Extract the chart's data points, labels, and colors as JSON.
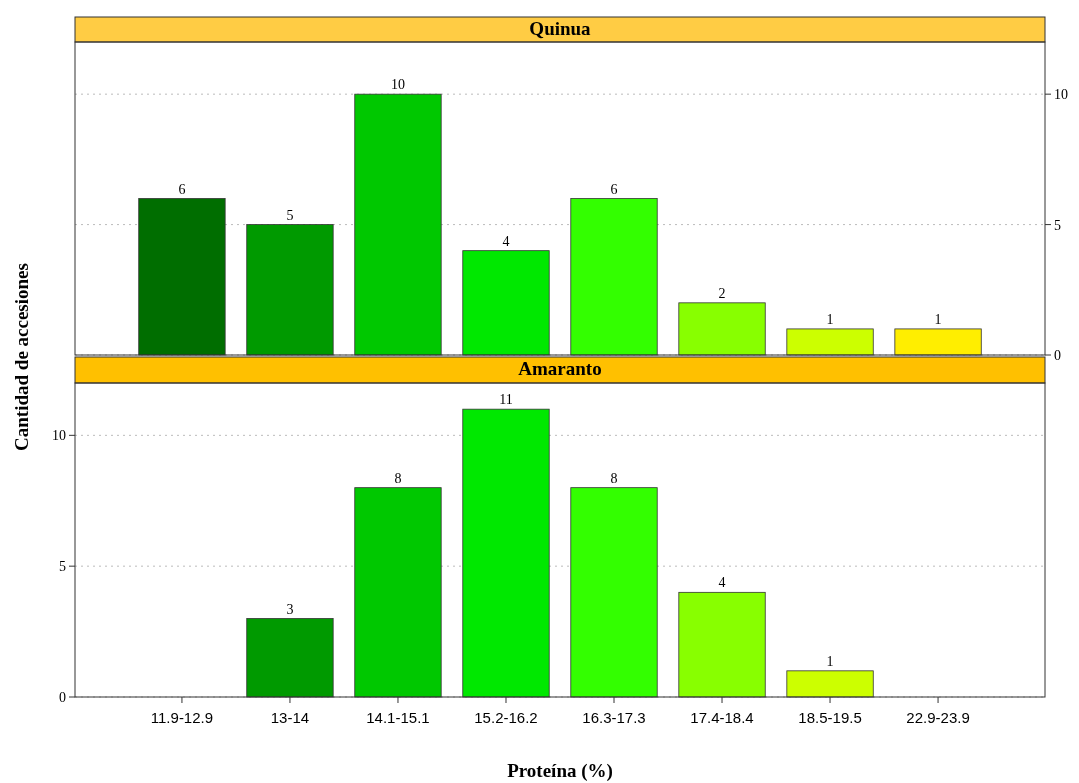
{
  "chart_data": [
    {
      "type": "bar",
      "title": "Quinua",
      "categories": [
        null,
        null,
        null,
        null,
        null,
        null,
        null,
        null
      ],
      "values": [
        6,
        5,
        10,
        4,
        6,
        2,
        1,
        1
      ],
      "colors": [
        "#006e00",
        "#009a00",
        "#00c800",
        "#00e800",
        "#33ff00",
        "#88ff00",
        "#ccff00",
        "#ffee00"
      ],
      "ylim": [
        0,
        12
      ],
      "yticks": [
        0,
        5,
        10
      ],
      "grid": "y",
      "data_labels": true,
      "tick_labels": "y"
    },
    {
      "type": "bar",
      "title": "Amaranto",
      "xlabel": "Proteína (%)",
      "ylabel": "Cantidad de accesiones",
      "categories": [
        "11.9-12.9",
        "13-14",
        "14.1-15.1",
        "15.2-16.2",
        "16.3-17.3",
        "17.4-18.4",
        "18.5-19.5",
        "22.9-23.9"
      ],
      "values": [
        0,
        3,
        8,
        11,
        8,
        4,
        1,
        0
      ],
      "value_labels": [
        null,
        "3",
        "8",
        "11",
        "8",
        "4",
        "1",
        null
      ],
      "colors": [
        "#006e00",
        "#009a00",
        "#00c800",
        "#00e800",
        "#33ff00",
        "#88ff00",
        "#ccff00",
        "#ffee00"
      ],
      "ylim": [
        0,
        12
      ],
      "yticks": [
        0,
        5,
        10
      ],
      "grid": "y"
    }
  ]
}
